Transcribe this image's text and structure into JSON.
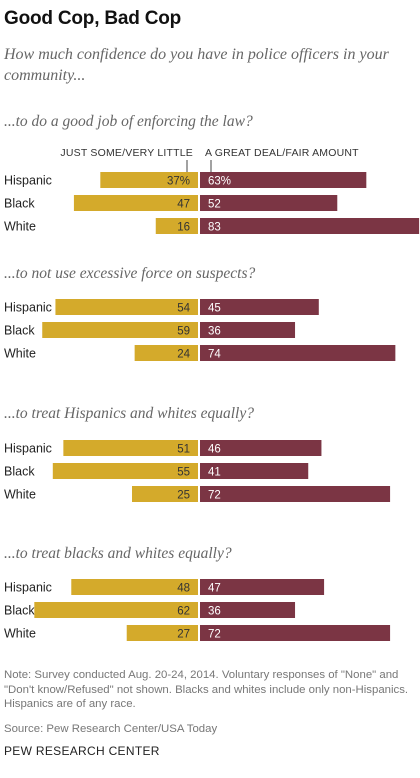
{
  "title": "Good Cop, Bad Cop",
  "subtitle": "How much confidence do you have in police officers in your community...",
  "note": "Note: Survey conducted Aug. 20-24, 2014. Voluntary responses of \"None\" and \"Don't know/Refused\" not shown. Blacks and whites include only non-Hispanics. Hispanics are of any race.",
  "source": "Source: Pew Research Center/USA Today",
  "organization": "PEW RESEARCH CENTER",
  "colors": {
    "low": "#d4aa2b",
    "high": "#7b3544"
  },
  "chart_data": {
    "type": "bar",
    "orientation": "diverging-horizontal",
    "legend": [
      "JUST SOME/VERY LITTLE",
      "A GREAT DEAL/FAIR AMOUNT"
    ],
    "categories": [
      "Hispanic",
      "Black",
      "White"
    ],
    "panels": [
      {
        "title": "...to do a good job of enforcing the law?",
        "series": [
          {
            "name": "JUST SOME/VERY LITTLE",
            "values": [
              37,
              47,
              16
            ],
            "labels": [
              "37%",
              "47",
              "16"
            ]
          },
          {
            "name": "A GREAT DEAL/FAIR AMOUNT",
            "values": [
              63,
              52,
              83
            ],
            "labels": [
              "63%",
              "52",
              "83"
            ]
          }
        ]
      },
      {
        "title": "...to not use excessive force on suspects?",
        "series": [
          {
            "name": "JUST SOME/VERY LITTLE",
            "values": [
              54,
              59,
              24
            ],
            "labels": [
              "54",
              "59",
              "24"
            ]
          },
          {
            "name": "A GREAT DEAL/FAIR AMOUNT",
            "values": [
              45,
              36,
              74
            ],
            "labels": [
              "45",
              "36",
              "74"
            ]
          }
        ]
      },
      {
        "title": "...to treat Hispanics and whites equally?",
        "series": [
          {
            "name": "JUST SOME/VERY LITTLE",
            "values": [
              51,
              55,
              25
            ],
            "labels": [
              "51",
              "55",
              "25"
            ]
          },
          {
            "name": "A GREAT DEAL/FAIR AMOUNT",
            "values": [
              46,
              41,
              72
            ],
            "labels": [
              "46",
              "41",
              "72"
            ]
          }
        ]
      },
      {
        "title": "...to treat blacks and whites equally?",
        "series": [
          {
            "name": "JUST SOME/VERY LITTLE",
            "values": [
              48,
              62,
              27
            ],
            "labels": [
              "48",
              "62",
              "27"
            ]
          },
          {
            "name": "A GREAT DEAL/FAIR AMOUNT",
            "values": [
              47,
              36,
              72
            ],
            "labels": [
              "47",
              "36",
              "72"
            ]
          }
        ]
      }
    ]
  }
}
